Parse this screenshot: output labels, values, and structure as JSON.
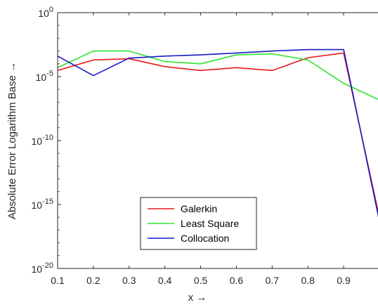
{
  "chart_data": {
    "type": "line",
    "xlabel": "x →",
    "ylabel": "Absolute Error Logarithm Base →",
    "xlim": [
      0.1,
      1.0
    ],
    "ylim": [
      1e-20,
      1
    ],
    "yscale": "log",
    "grid": false,
    "legend_position": "bottom-center",
    "x_ticks": [
      0.1,
      0.2,
      0.3,
      0.4,
      0.5,
      0.6,
      0.7,
      0.8,
      0.9
    ],
    "x_tick_labels": [
      "0.1",
      "0.2",
      "0.3",
      "0.4",
      "0.5",
      "0.6",
      "0.7",
      "0.8",
      "0.9"
    ],
    "y_ticks": [
      {
        "value": 1.0,
        "base": "10",
        "exp": "0"
      },
      {
        "value": 1e-05,
        "base": "10",
        "exp": "-5"
      },
      {
        "value": 1e-10,
        "base": "10",
        "exp": "-10"
      },
      {
        "value": 1e-15,
        "base": "10",
        "exp": "-15"
      },
      {
        "value": 1e-20,
        "base": "10",
        "exp": "-20"
      }
    ],
    "series": [
      {
        "name": "Galerkin",
        "color": "#e8191c",
        "x": [
          0.1,
          0.2,
          0.3,
          0.4,
          0.5,
          0.6,
          0.7,
          0.8,
          0.9,
          1.0
        ],
        "y": [
          3e-05,
          0.0002,
          0.00025,
          6e-05,
          3e-05,
          5e-05,
          3e-05,
          0.0003,
          0.0007,
          1e-16
        ]
      },
      {
        "name": "Least Square",
        "color": "#2ee52e",
        "x": [
          0.1,
          0.2,
          0.3,
          0.4,
          0.5,
          0.6,
          0.7,
          0.8,
          0.9,
          1.0
        ],
        "y": [
          5e-05,
          0.001,
          0.001,
          0.00015,
          0.0001,
          0.0005,
          0.0006,
          0.0002,
          3e-06,
          1.5e-07
        ]
      },
      {
        "name": "Collocation",
        "color": "#1919c8",
        "x": [
          0.1,
          0.2,
          0.3,
          0.4,
          0.5,
          0.6,
          0.7,
          0.8,
          0.9,
          1.0
        ],
        "y": [
          0.0004,
          1.2e-05,
          0.00028,
          0.0004,
          0.0005,
          0.0007,
          0.001,
          0.0013,
          0.0013,
          5e-17
        ]
      }
    ]
  }
}
